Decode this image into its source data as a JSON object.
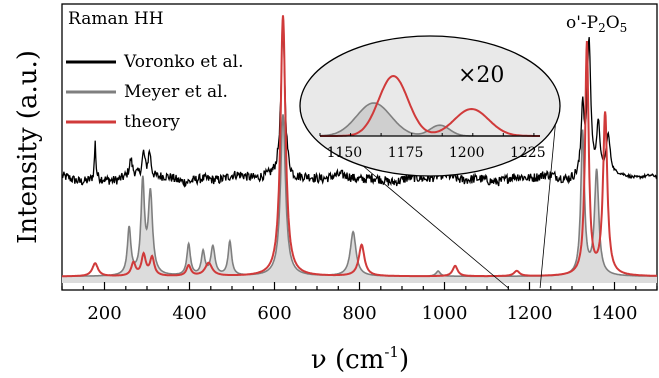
{
  "chart_data": {
    "type": "line",
    "legend_title": "Raman HH",
    "annotation_compound": "o'-P",
    "annotation_sub2": "2",
    "annotation_O": "O",
    "annotation_sub5": "5",
    "xlabel_main": "ν (cm",
    "xlabel_sup": "-1",
    "xlabel_close": ")",
    "ylabel": "Intensity (a.u.)",
    "xlim": [
      100,
      1500
    ],
    "ylim": [
      0,
      1
    ],
    "y_log": false,
    "grid": false,
    "legend_position": "top-left",
    "x_ticks": [
      200,
      400,
      600,
      800,
      1000,
      1200,
      1400
    ],
    "x_tick_labels": [
      "200",
      "400",
      "600",
      "800",
      "1000",
      "1200",
      "1400"
    ],
    "series": [
      {
        "name": "Voronko et al.",
        "color": "#000000",
        "baseline": 0.4,
        "noise": 0.018,
        "noise_x_range": [
          100,
          1320
        ],
        "peaks": [
          {
            "x": 178,
            "h": 0.14,
            "w": 2
          },
          {
            "x": 262,
            "h": 0.06,
            "w": 4
          },
          {
            "x": 292,
            "h": 0.09,
            "w": 4
          },
          {
            "x": 306,
            "h": 0.1,
            "w": 4
          },
          {
            "x": 620,
            "h": 0.57,
            "w": 6
          },
          {
            "x": 1325,
            "h": 0.26,
            "w": 4
          },
          {
            "x": 1340,
            "h": 0.52,
            "w": 5
          },
          {
            "x": 1362,
            "h": 0.2,
            "w": 5
          },
          {
            "x": 1385,
            "h": 0.16,
            "w": 6
          }
        ]
      },
      {
        "name": "Meyer et al.",
        "color": "#7f7f7f",
        "fill": "#dcdcdc",
        "baseline": 0.025,
        "peaks": [
          {
            "x": 258,
            "h": 0.18,
            "w": 5
          },
          {
            "x": 290,
            "h": 0.35,
            "w": 5
          },
          {
            "x": 308,
            "h": 0.31,
            "w": 6
          },
          {
            "x": 398,
            "h": 0.12,
            "w": 5
          },
          {
            "x": 432,
            "h": 0.09,
            "w": 5
          },
          {
            "x": 455,
            "h": 0.11,
            "w": 6
          },
          {
            "x": 495,
            "h": 0.13,
            "w": 5
          },
          {
            "x": 620,
            "h": 0.62,
            "w": 7
          },
          {
            "x": 785,
            "h": 0.17,
            "w": 8
          },
          {
            "x": 985,
            "h": 0.02,
            "w": 6
          },
          {
            "x": 1325,
            "h": 0.55,
            "w": 5
          },
          {
            "x": 1358,
            "h": 0.4,
            "w": 6
          }
        ]
      },
      {
        "name": "theory",
        "color": "#d03a3a",
        "baseline": 0.025,
        "peaks": [
          {
            "x": 178,
            "h": 0.05,
            "w": 8
          },
          {
            "x": 268,
            "h": 0.05,
            "w": 6
          },
          {
            "x": 292,
            "h": 0.08,
            "w": 6
          },
          {
            "x": 312,
            "h": 0.07,
            "w": 6
          },
          {
            "x": 398,
            "h": 0.04,
            "w": 6
          },
          {
            "x": 445,
            "h": 0.05,
            "w": 10
          },
          {
            "x": 620,
            "h": 1.0,
            "w": 7
          },
          {
            "x": 805,
            "h": 0.12,
            "w": 8
          },
          {
            "x": 1025,
            "h": 0.04,
            "w": 7
          },
          {
            "x": 1170,
            "h": 0.02,
            "w": 8
          },
          {
            "x": 1335,
            "h": 0.89,
            "w": 5
          },
          {
            "x": 1378,
            "h": 0.62,
            "w": 6
          }
        ]
      }
    ],
    "inset": {
      "magnification": "×20",
      "xlim": [
        1140,
        1230
      ],
      "x_ticks": [
        1150,
        1175,
        1200,
        1225
      ],
      "x_tick_labels": [
        "1150",
        "1175",
        "1200",
        "1225"
      ],
      "meyer_peaks": [
        {
          "x": 1162,
          "h": 0.55,
          "w": 7
        },
        {
          "x": 1189,
          "h": 0.18,
          "w": 4
        }
      ],
      "theory_peaks": [
        {
          "x": 1170,
          "h": 1.0,
          "w": 6
        },
        {
          "x": 1202,
          "h": 0.45,
          "w": 7
        }
      ],
      "zoom_x_range": [
        1150,
        1225
      ]
    }
  }
}
